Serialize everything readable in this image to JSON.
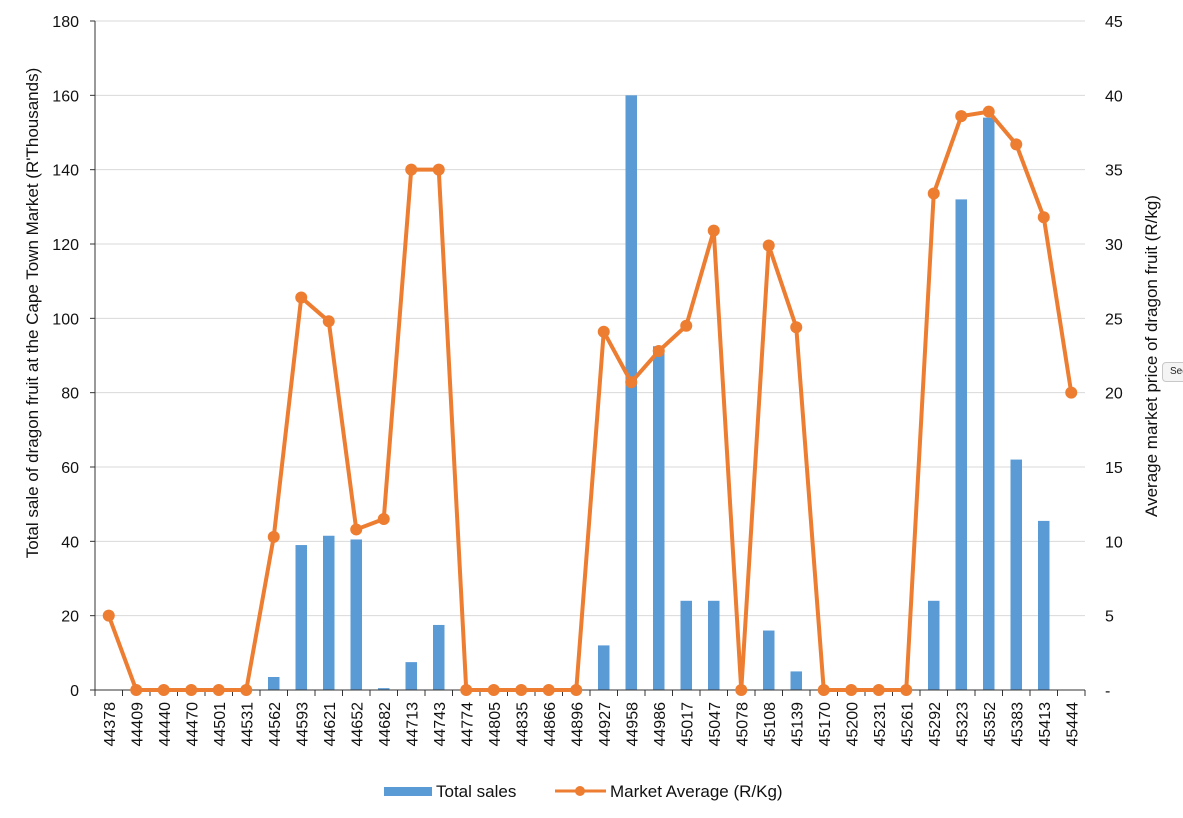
{
  "chart_data": {
    "type": "bar+line",
    "title": "",
    "categories": [
      "44378",
      "44409",
      "44440",
      "44470",
      "44501",
      "44531",
      "44562",
      "44593",
      "44621",
      "44652",
      "44682",
      "44713",
      "44743",
      "44774",
      "44805",
      "44835",
      "44866",
      "44896",
      "44927",
      "44958",
      "44986",
      "45017",
      "45047",
      "45078",
      "45108",
      "45139",
      "45170",
      "45200",
      "45231",
      "45261",
      "45292",
      "45323",
      "45352",
      "45383",
      "45413",
      "45444"
    ],
    "ylabel": "Total sale of dragon fruit at the Cape Town Market (R'Thousands)",
    "y2label": "Average market price of dragon fruit (R/kg)",
    "ylim": [
      0,
      180
    ],
    "yticks": [
      "0",
      "20",
      "40",
      "60",
      "80",
      "100",
      "120",
      "140",
      "160",
      "180"
    ],
    "y2lim": [
      0,
      45
    ],
    "y2ticks": [
      "-",
      "5",
      "10",
      "15",
      "20",
      "25",
      "30",
      "35",
      "40",
      "45"
    ],
    "grid": true,
    "legend_position": "bottom",
    "series": [
      {
        "name": "Total sales",
        "kind": "bar",
        "axis": "left",
        "color": "#5B9BD5",
        "values": [
          0,
          0,
          0,
          0,
          0,
          0,
          3.5,
          39,
          41.5,
          40.5,
          0.5,
          7.5,
          17.5,
          0,
          0,
          0,
          0,
          0,
          12,
          160,
          92.5,
          24,
          24,
          0,
          16,
          5,
          0,
          0,
          0,
          0,
          24,
          132,
          154,
          62,
          45.5,
          0
        ]
      },
      {
        "name": "Market Average (R/Kg)",
        "kind": "line",
        "axis": "right",
        "color": "#ED7D31",
        "values": [
          5,
          0,
          0,
          0,
          0,
          0,
          10.3,
          26.4,
          24.8,
          10.8,
          11.5,
          35,
          35,
          0,
          0,
          0,
          0,
          0,
          24.1,
          20.7,
          22.8,
          24.5,
          30.9,
          0,
          29.9,
          24.4,
          0,
          0,
          0,
          0,
          33.4,
          38.6,
          38.9,
          36.7,
          31.8,
          20
        ]
      }
    ]
  },
  "side_tab": {
    "label": "Sec"
  }
}
